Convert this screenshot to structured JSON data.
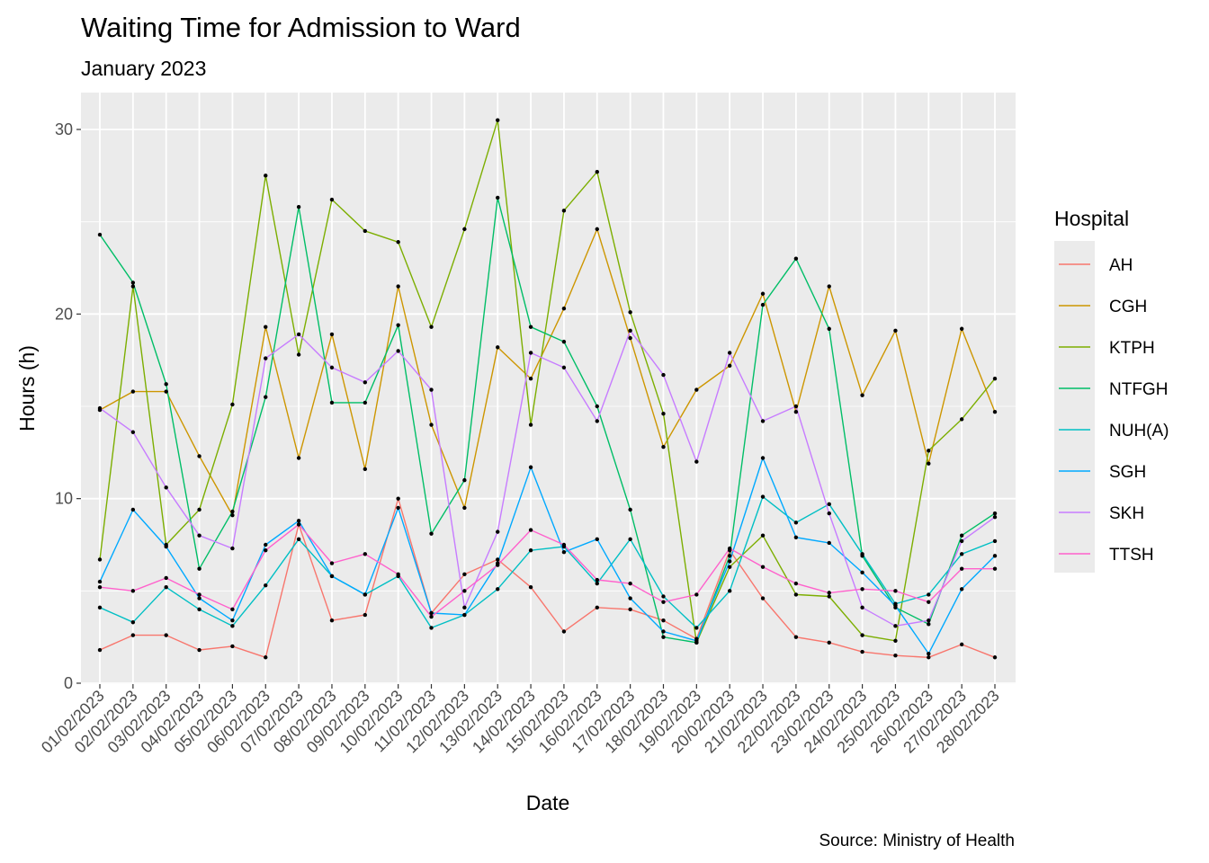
{
  "chart_data": {
    "type": "line",
    "title": "Waiting Time for Admission to Ward",
    "subtitle": "January 2023",
    "xlabel": "Date",
    "ylabel": "Hours (h)",
    "caption": "Source: Ministry of Health",
    "legend_title": "Hospital",
    "legend_position": "right",
    "grid": true,
    "ylim": [
      0,
      31
    ],
    "yticks": [
      0,
      10,
      20,
      30
    ],
    "x": [
      "01/02/2023",
      "02/02/2023",
      "03/02/2023",
      "04/02/2023",
      "05/02/2023",
      "06/02/2023",
      "07/02/2023",
      "08/02/2023",
      "09/02/2023",
      "10/02/2023",
      "11/02/2023",
      "12/02/2023",
      "13/02/2023",
      "14/02/2023",
      "15/02/2023",
      "16/02/2023",
      "17/02/2023",
      "18/02/2023",
      "19/02/2023",
      "20/02/2023",
      "21/02/2023",
      "22/02/2023",
      "23/02/2023",
      "24/02/2023",
      "25/02/2023",
      "26/02/2023",
      "27/02/2023",
      "28/02/2023"
    ],
    "series": [
      {
        "name": "AH",
        "color": "#F8766D",
        "values": [
          1.8,
          2.6,
          2.6,
          1.8,
          2.0,
          1.4,
          8.6,
          3.4,
          3.7,
          10.0,
          3.8,
          5.9,
          6.7,
          5.2,
          2.8,
          4.1,
          4.0,
          3.4,
          2.4,
          7.2,
          4.6,
          2.5,
          2.2,
          1.7,
          1.5,
          1.4,
          2.1,
          1.4
        ]
      },
      {
        "name": "CGH",
        "color": "#CD9600",
        "values": [
          14.8,
          15.8,
          15.8,
          12.3,
          9.1,
          19.3,
          12.2,
          18.9,
          11.6,
          21.5,
          14.0,
          9.5,
          18.2,
          16.5,
          20.3,
          24.6,
          18.7,
          12.8,
          15.9,
          17.2,
          21.1,
          14.7,
          21.5,
          15.6,
          19.1,
          11.9,
          19.2,
          14.7
        ]
      },
      {
        "name": "KTPH",
        "color": "#7CAE00",
        "values": [
          6.7,
          21.5,
          7.5,
          9.4,
          15.1,
          27.5,
          17.8,
          26.2,
          24.5,
          23.9,
          19.3,
          24.6,
          30.5,
          14.0,
          25.6,
          27.7,
          20.1,
          14.6,
          2.2,
          6.3,
          8.0,
          4.8,
          4.7,
          2.6,
          2.3,
          12.6,
          14.3,
          16.5
        ]
      },
      {
        "name": "NTFGH",
        "color": "#00BE67",
        "values": [
          24.3,
          21.7,
          16.2,
          6.2,
          9.3,
          15.5,
          25.8,
          15.2,
          15.2,
          19.4,
          8.1,
          11.0,
          26.3,
          19.3,
          18.5,
          15.0,
          9.4,
          2.5,
          2.2,
          6.9,
          20.5,
          23.0,
          19.2,
          6.9,
          4.1,
          3.2,
          8.0,
          9.2
        ]
      },
      {
        "name": "NUH(A)",
        "color": "#00BFC4",
        "values": [
          4.1,
          3.3,
          5.2,
          4.0,
          3.1,
          5.3,
          7.8,
          5.8,
          4.8,
          5.8,
          3.0,
          3.7,
          5.1,
          7.2,
          7.4,
          5.4,
          7.8,
          4.7,
          3.0,
          5.0,
          10.1,
          8.7,
          9.7,
          7.0,
          4.3,
          4.8,
          7.0,
          7.7
        ]
      },
      {
        "name": "SGH",
        "color": "#00A9FF",
        "values": [
          5.5,
          9.4,
          7.4,
          4.6,
          3.4,
          7.5,
          8.8,
          5.8,
          4.8,
          9.5,
          3.8,
          3.7,
          6.5,
          11.7,
          7.1,
          7.8,
          4.6,
          2.8,
          2.3,
          6.6,
          12.2,
          7.9,
          7.6,
          6.0,
          4.2,
          1.6,
          5.1,
          6.9
        ]
      },
      {
        "name": "SKH",
        "color": "#C77CFF",
        "values": [
          14.9,
          13.6,
          10.6,
          8.0,
          7.3,
          17.6,
          18.9,
          17.1,
          16.3,
          18.0,
          15.9,
          4.1,
          8.2,
          17.9,
          17.1,
          14.2,
          19.1,
          16.7,
          12.0,
          17.9,
          14.2,
          15.0,
          9.2,
          4.1,
          3.1,
          3.4,
          7.7,
          9.0
        ]
      },
      {
        "name": "TTSH",
        "color": "#FF61CC",
        "values": [
          5.2,
          5.0,
          5.7,
          4.8,
          4.0,
          7.2,
          8.6,
          6.5,
          7.0,
          5.9,
          3.6,
          5.0,
          6.4,
          8.3,
          7.5,
          5.6,
          5.4,
          4.4,
          4.8,
          7.3,
          6.3,
          5.4,
          4.9,
          5.1,
          5.0,
          4.4,
          6.2,
          6.2
        ]
      }
    ]
  }
}
